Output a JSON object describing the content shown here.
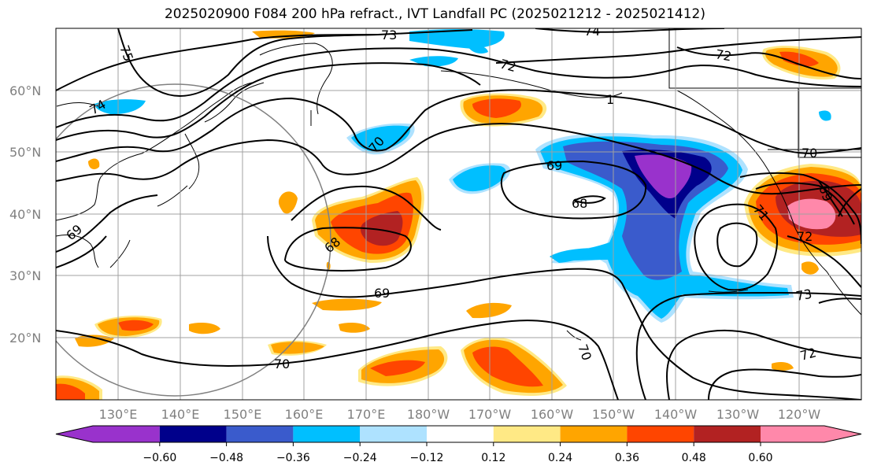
{
  "title": "2025020900 F084 200 hPa refract., IVT Landfall PC (2025021212 - 2025021412)",
  "lat_labels": [
    "60°N",
    "50°N",
    "40°N",
    "30°N",
    "20°N"
  ],
  "lon_labels": [
    "130°E",
    "140°E",
    "150°E",
    "160°E",
    "170°E",
    "180°W",
    "170°W",
    "160°W",
    "150°W",
    "140°W",
    "130°W",
    "120°W"
  ],
  "contour_labels": [
    "75",
    "73",
    "74",
    "72",
    "72",
    "74",
    "70",
    "1",
    "69",
    "68",
    "70",
    "69",
    "71",
    "72",
    "68",
    "69",
    "69",
    "73",
    "70",
    "72",
    "70"
  ],
  "colorbar": {
    "colors": [
      "#9932cc",
      "#00008b",
      "#3a5bcc",
      "#00bfff",
      "#aee2ff",
      "#ffffff",
      "#ffe985",
      "#ffa500",
      "#ff4500",
      "#b22222",
      "#ff88aa"
    ],
    "ticks": [
      "−0.60",
      "−0.48",
      "−0.36",
      "−0.24",
      "−0.12",
      "0.12",
      "0.24",
      "0.36",
      "0.48",
      "0.60"
    ]
  },
  "fill_colors": {
    "light_orange": "#ffe985",
    "orange": "#ffa500",
    "red_orange": "#ff4500",
    "dark_red": "#b22222",
    "pink": "#ff88aa",
    "light_blue": "#aee2ff",
    "sky_blue": "#00bfff",
    "blue": "#3a5bcc",
    "navy": "#00008b",
    "purple": "#9932cc"
  }
}
